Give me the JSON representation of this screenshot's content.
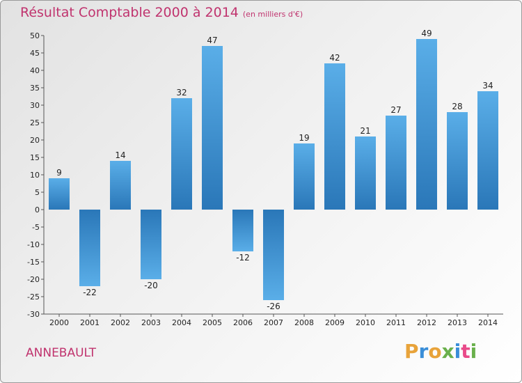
{
  "header": {
    "title": "Résultat Comptable 2000 à 2014",
    "unit": "(en milliers d'€)"
  },
  "footer": {
    "commune": "ANNEBAULT",
    "logo": "Proxiti"
  },
  "colors": {
    "title": "#c0336e",
    "bar_light": "#5aaee8",
    "bar_dark": "#2a77b8"
  },
  "chart_data": {
    "type": "bar",
    "title": "Résultat Comptable 2000 à 2014 (en milliers d'€)",
    "xlabel": "",
    "ylabel": "",
    "categories": [
      "2000",
      "2001",
      "2002",
      "2003",
      "2004",
      "2005",
      "2006",
      "2007",
      "2008",
      "2009",
      "2010",
      "2011",
      "2012",
      "2013",
      "2014"
    ],
    "values": [
      9,
      -22,
      14,
      -20,
      32,
      47,
      -12,
      -26,
      19,
      42,
      21,
      27,
      49,
      28,
      34
    ],
    "ylim": [
      -30,
      50
    ],
    "yticks": [
      50,
      45,
      40,
      35,
      30,
      25,
      20,
      15,
      10,
      5,
      0,
      -5,
      -10,
      -15,
      -20,
      -25,
      -30
    ],
    "grid": false,
    "legend": "none"
  }
}
